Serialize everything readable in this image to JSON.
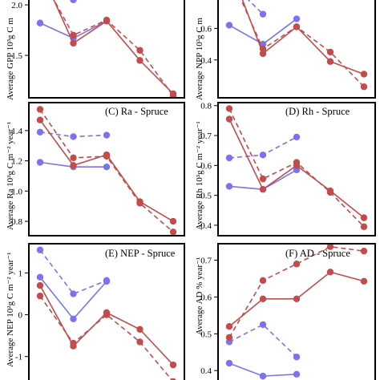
{
  "colors": {
    "blue": "#7b72f0",
    "red": "#c24b4b",
    "axis": "#000000"
  },
  "chart_data": [
    {
      "panel": "A",
      "type": "line",
      "title": "",
      "ylabel": "Average GPP 10³g C m",
      "ylim": [
        1.08,
        2.08
      ],
      "yticks": [
        1.5,
        2.0
      ],
      "yticklabels": [
        "1.5",
        "2.0"
      ],
      "x": [
        1,
        2,
        3,
        4,
        5
      ],
      "grid": false,
      "series": [
        {
          "color": "blue",
          "dash": false,
          "values": [
            1.82,
            1.67,
            1.84,
            null,
            null
          ]
        },
        {
          "color": "blue",
          "dash": true,
          "values": [
            2.27,
            2.05,
            null,
            null,
            null
          ]
        },
        {
          "color": "red",
          "dash": false,
          "values": [
            2.35,
            1.62,
            1.84,
            1.45,
            1.12
          ]
        },
        {
          "color": "red",
          "dash": true,
          "values": [
            2.3,
            1.7,
            1.85,
            1.55,
            1.1
          ]
        }
      ]
    },
    {
      "panel": "B",
      "type": "line",
      "title": "",
      "ylabel": "Average NPP 10³g C m",
      "ylim": [
        0.16,
        0.8
      ],
      "yticks": [
        0.4,
        0.6
      ],
      "yticklabels": [
        "0.4",
        "0.6"
      ],
      "x": [
        1,
        2,
        3,
        4,
        5
      ],
      "grid": false,
      "series": [
        {
          "color": "blue",
          "dash": false,
          "values": [
            0.62,
            0.5,
            0.66,
            null,
            null
          ]
        },
        {
          "color": "blue",
          "dash": true,
          "values": [
            0.9,
            0.69,
            null,
            null,
            null
          ]
        },
        {
          "color": "red",
          "dash": false,
          "values": [
            1.0,
            0.44,
            0.61,
            0.39,
            0.31
          ]
        },
        {
          "color": "red",
          "dash": true,
          "values": [
            0.95,
            0.47,
            0.61,
            0.45,
            0.23
          ]
        }
      ]
    },
    {
      "panel": "C",
      "type": "line",
      "title": "(C) Ra - Spruce",
      "ylabel": "Average Ra 10³g C m⁻² year⁻¹",
      "ylim": [
        0.705,
        1.585
      ],
      "yticks": [
        0.8,
        1.0,
        1.2,
        1.4
      ],
      "yticklabels": [
        "0.8",
        "1.0",
        "1.2",
        "1.4"
      ],
      "x": [
        1,
        2,
        3,
        4,
        5
      ],
      "grid": false,
      "series": [
        {
          "color": "blue",
          "dash": false,
          "values": [
            1.19,
            1.16,
            1.16,
            null,
            null
          ]
        },
        {
          "color": "blue",
          "dash": true,
          "values": [
            1.39,
            1.36,
            1.37,
            null,
            null
          ]
        },
        {
          "color": "red",
          "dash": false,
          "values": [
            1.47,
            1.17,
            1.24,
            0.93,
            0.8
          ]
        },
        {
          "color": "red",
          "dash": true,
          "values": [
            1.54,
            1.22,
            1.23,
            0.92,
            0.73
          ]
        }
      ]
    },
    {
      "panel": "D",
      "type": "line",
      "title": "(D) Rh - Spruce",
      "ylabel": "Average Rh 10³g C m⁻² year⁻¹",
      "ylim": [
        0.365,
        0.81
      ],
      "yticks": [
        0.4,
        0.5,
        0.6,
        0.7,
        0.8
      ],
      "yticklabels": [
        "0.4",
        "0.5",
        "0.6",
        "0.7",
        "0.8"
      ],
      "x": [
        1,
        2,
        3,
        4,
        5
      ],
      "grid": false,
      "series": [
        {
          "color": "blue",
          "dash": false,
          "values": [
            0.53,
            0.52,
            0.585,
            null,
            null
          ]
        },
        {
          "color": "blue",
          "dash": true,
          "values": [
            0.625,
            0.635,
            0.695,
            null,
            null
          ]
        },
        {
          "color": "red",
          "dash": false,
          "values": [
            0.755,
            0.52,
            0.6,
            0.515,
            0.425
          ]
        },
        {
          "color": "red",
          "dash": true,
          "values": [
            0.79,
            0.555,
            0.61,
            0.51,
            0.395
          ]
        }
      ]
    },
    {
      "panel": "E",
      "type": "line",
      "title": "(E) NEP - Spruce",
      "ylabel": "Average NEP 10²g C m⁻² year⁻¹",
      "ylim": [
        -1.6,
        1.7
      ],
      "yticks": [
        -1,
        0,
        1
      ],
      "yticklabels": [
        "-1",
        "0",
        "1"
      ],
      "x": [
        1,
        2,
        3,
        4,
        5
      ],
      "grid": false,
      "series": [
        {
          "color": "blue",
          "dash": false,
          "values": [
            0.9,
            -0.1,
            0.8,
            null,
            null
          ]
        },
        {
          "color": "blue",
          "dash": true,
          "values": [
            1.55,
            0.5,
            0.82,
            null,
            null
          ]
        },
        {
          "color": "red",
          "dash": false,
          "values": [
            0.7,
            -0.75,
            0.05,
            -0.35,
            -1.2
          ]
        },
        {
          "color": "red",
          "dash": true,
          "values": [
            0.45,
            -0.68,
            0.0,
            -0.65,
            -1.6
          ]
        }
      ]
    },
    {
      "panel": "F",
      "type": "line",
      "title": "(F) AD - Spruce",
      "ylabel": "Average AD % year⁻¹",
      "ylim": [
        0.37,
        0.745
      ],
      "yticks": [
        0.4,
        0.5,
        0.6,
        0.7
      ],
      "yticklabels": [
        "0.4",
        "0.5",
        "0.6",
        "0.7"
      ],
      "x": [
        1,
        2,
        3,
        4,
        5
      ],
      "grid": false,
      "series": [
        {
          "color": "blue",
          "dash": false,
          "values": [
            0.42,
            0.385,
            0.39,
            null,
            null
          ]
        },
        {
          "color": "blue",
          "dash": true,
          "values": [
            0.478,
            0.525,
            0.437,
            null,
            null
          ]
        },
        {
          "color": "red",
          "dash": false,
          "values": [
            0.52,
            0.595,
            0.595,
            0.668,
            0.643
          ]
        },
        {
          "color": "red",
          "dash": true,
          "values": [
            0.49,
            0.645,
            0.69,
            0.737,
            0.725
          ]
        }
      ]
    }
  ]
}
